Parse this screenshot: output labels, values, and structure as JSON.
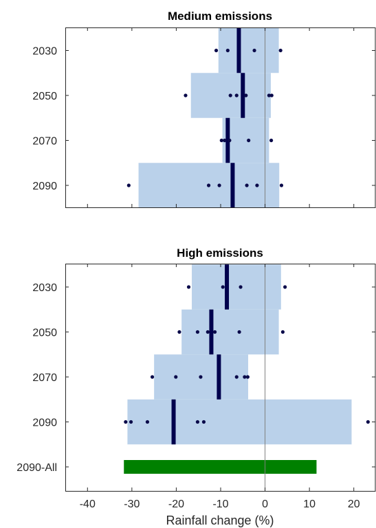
{
  "chart_data": [
    {
      "type": "range",
      "title": "Medium emissions",
      "xlabel": "",
      "xlim": [
        -45,
        25
      ],
      "xticks": [
        -40,
        -30,
        -20,
        -10,
        0,
        10,
        20
      ],
      "show_xticklabels": false,
      "categories": [
        "2030",
        "2050",
        "2070",
        "2090"
      ],
      "ranges": [
        {
          "low": -10.5,
          "high": 3.1,
          "median": -5.9,
          "points": [
            -11.0,
            -8.4,
            -2.4,
            3.5
          ]
        },
        {
          "low": -16.7,
          "high": 1.3,
          "median": -5.0,
          "points": [
            -17.9,
            -7.8,
            -6.4,
            -4.3,
            0.9,
            1.5
          ]
        },
        {
          "low": -9.6,
          "high": 0.9,
          "median": -8.4,
          "points": [
            -9.8,
            -9.1,
            -8.0,
            -3.7,
            1.4
          ]
        },
        {
          "low": -28.5,
          "high": 3.2,
          "median": -7.3,
          "points": [
            -30.7,
            -12.7,
            -10.3,
            -4.1,
            -1.8,
            3.7
          ]
        }
      ],
      "colors": {
        "range": "#bad1ea",
        "median": "#00004d",
        "points": "#0a0a4a",
        "zero_line": "#7f7f7f"
      }
    },
    {
      "type": "range",
      "title": "High emissions",
      "xlabel": "Rainfall change (%)",
      "xlim": [
        -45,
        25
      ],
      "xticks": [
        -40,
        -30,
        -20,
        -10,
        0,
        10,
        20
      ],
      "xticklabels": [
        "-40",
        "-30",
        "-20",
        "-10",
        "0",
        "10",
        "20"
      ],
      "categories": [
        "2030",
        "2050",
        "2070",
        "2090",
        "2090-All"
      ],
      "ranges": [
        {
          "low": -16.5,
          "high": 3.6,
          "median": -8.6,
          "points": [
            -17.2,
            -9.5,
            -5.5,
            4.5
          ]
        },
        {
          "low": -18.8,
          "high": 3.1,
          "median": -12.1,
          "points": [
            -19.3,
            -15.2,
            -12.9,
            -11.3,
            -5.8,
            4.0
          ]
        },
        {
          "low": -25.0,
          "high": -3.8,
          "median": -10.4,
          "points": [
            -25.4,
            -20.1,
            -14.5,
            -6.4,
            -4.6,
            -3.9
          ]
        },
        {
          "low": -31.0,
          "high": 19.5,
          "median": -20.6,
          "points": [
            -31.4,
            -30.2,
            -26.5,
            -15.2,
            -13.8,
            23.2
          ]
        },
        {
          "low": -31.8,
          "high": 11.6,
          "color": "#008000"
        }
      ],
      "colors": {
        "range": "#bad1ea",
        "median": "#00004d",
        "points": "#0a0a4a",
        "zero_line": "#7f7f7f"
      }
    }
  ]
}
